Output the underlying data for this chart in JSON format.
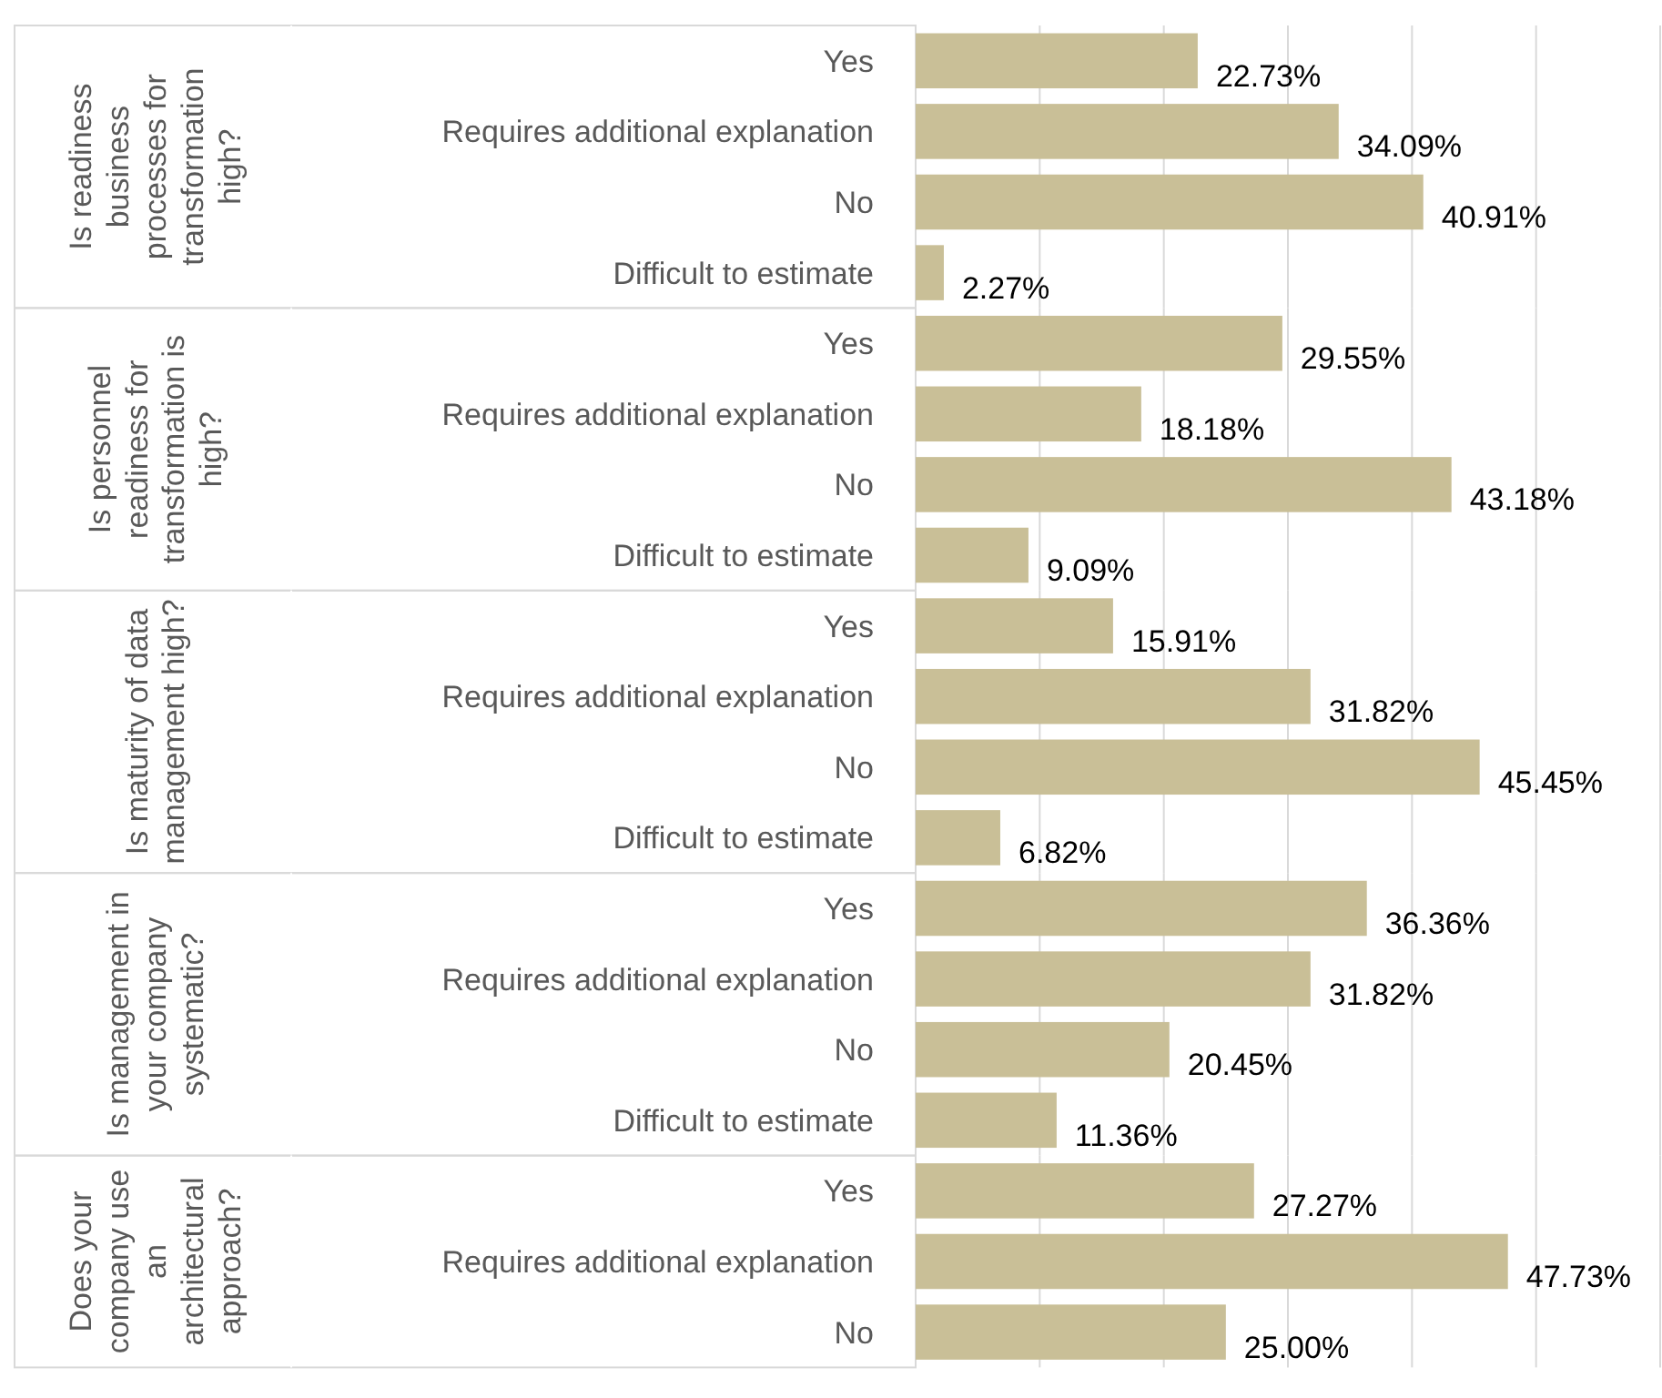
{
  "chart_data": [
    {
      "type": "bar",
      "orientation": "horizontal",
      "ylabel": "Is readiness business processes for transformation high?",
      "categories": [
        "Yes",
        "Requires additional explanation",
        "No",
        "Difficult to estimate"
      ],
      "values": [
        22.73,
        34.09,
        40.91,
        2.27
      ],
      "color": "#c9bf97",
      "data_labels": true,
      "value_labels": [
        "22.73%",
        "34.09%",
        "40.91%",
        "2.27%"
      ],
      "xlim": [
        0,
        60
      ],
      "xticks": [
        {
          "value": 0,
          "label": null
        },
        {
          "value": 10,
          "label": null
        },
        {
          "value": 20,
          "label": null
        },
        {
          "value": 30,
          "label": null
        },
        {
          "value": 40,
          "label": null
        },
        {
          "value": 50,
          "label": null
        }
      ],
      "grid": "x",
      "tick_labels": "y"
    },
    {
      "type": "bar",
      "orientation": "horizontal",
      "ylabel": "Is personnel readiness for transformation is high?",
      "categories": [
        "Yes",
        "Requires additional explanation",
        "No",
        "Difficult to estimate"
      ],
      "values": [
        29.55,
        18.18,
        43.18,
        9.09
      ],
      "color": "#c9bf97",
      "data_labels": true,
      "value_labels": [
        "29.55%",
        "18.18%",
        "43.18%",
        "9.09%"
      ],
      "xlim": [
        0,
        60
      ],
      "xticks": [
        {
          "value": 0,
          "label": null
        },
        {
          "value": 10,
          "label": null
        },
        {
          "value": 20,
          "label": null
        },
        {
          "value": 30,
          "label": null
        },
        {
          "value": 40,
          "label": null
        },
        {
          "value": 50,
          "label": null
        }
      ],
      "grid": "x",
      "tick_labels": "y"
    },
    {
      "type": "bar",
      "orientation": "horizontal",
      "ylabel": "Is maturity of data management high?",
      "categories": [
        "Yes",
        "Requires additional explanation",
        "No",
        "Difficult to estimate"
      ],
      "values": [
        15.91,
        31.82,
        45.45,
        6.82
      ],
      "color": "#c9bf97",
      "data_labels": true,
      "value_labels": [
        "15.91%",
        "31.82%",
        "45.45%",
        "6.82%"
      ],
      "xlim": [
        0,
        60
      ],
      "xticks": [
        {
          "value": 0,
          "label": null
        },
        {
          "value": 10,
          "label": null
        },
        {
          "value": 20,
          "label": null
        },
        {
          "value": 30,
          "label": null
        },
        {
          "value": 40,
          "label": null
        },
        {
          "value": 50,
          "label": null
        }
      ],
      "grid": "x",
      "tick_labels": "y"
    },
    {
      "type": "bar",
      "orientation": "horizontal",
      "ylabel": "Is management in your company systematic?",
      "categories": [
        "Yes",
        "Requires additional explanation",
        "No",
        "Difficult to estimate"
      ],
      "values": [
        36.36,
        31.82,
        20.45,
        11.36
      ],
      "color": "#c9bf97",
      "data_labels": true,
      "value_labels": [
        "36.36%",
        "31.82%",
        "20.45%",
        "11.36%"
      ],
      "xlim": [
        0,
        60
      ],
      "xticks": [
        {
          "value": 0,
          "label": null
        },
        {
          "value": 10,
          "label": null
        },
        {
          "value": 20,
          "label": null
        },
        {
          "value": 30,
          "label": null
        },
        {
          "value": 40,
          "label": null
        },
        {
          "value": 50,
          "label": null
        }
      ],
      "grid": "x",
      "tick_labels": "y"
    },
    {
      "type": "bar",
      "orientation": "horizontal",
      "ylabel": "Does your company use an architectural approach?",
      "categories": [
        "Yes",
        "Requires additional explanation",
        "No"
      ],
      "values": [
        27.27,
        47.73,
        25.0
      ],
      "color": "#c9bf97",
      "data_labels": true,
      "value_labels": [
        "27.27%",
        "47.73%",
        "25.00%"
      ],
      "xlim": [
        0,
        60
      ],
      "xticks": [
        {
          "value": 0,
          "label": null
        },
        {
          "value": 10,
          "label": null
        },
        {
          "value": 20,
          "label": null
        },
        {
          "value": 30,
          "label": null
        },
        {
          "value": 40,
          "label": null
        },
        {
          "value": 50,
          "label": null
        }
      ],
      "grid": "x",
      "tick_labels": "y"
    }
  ]
}
